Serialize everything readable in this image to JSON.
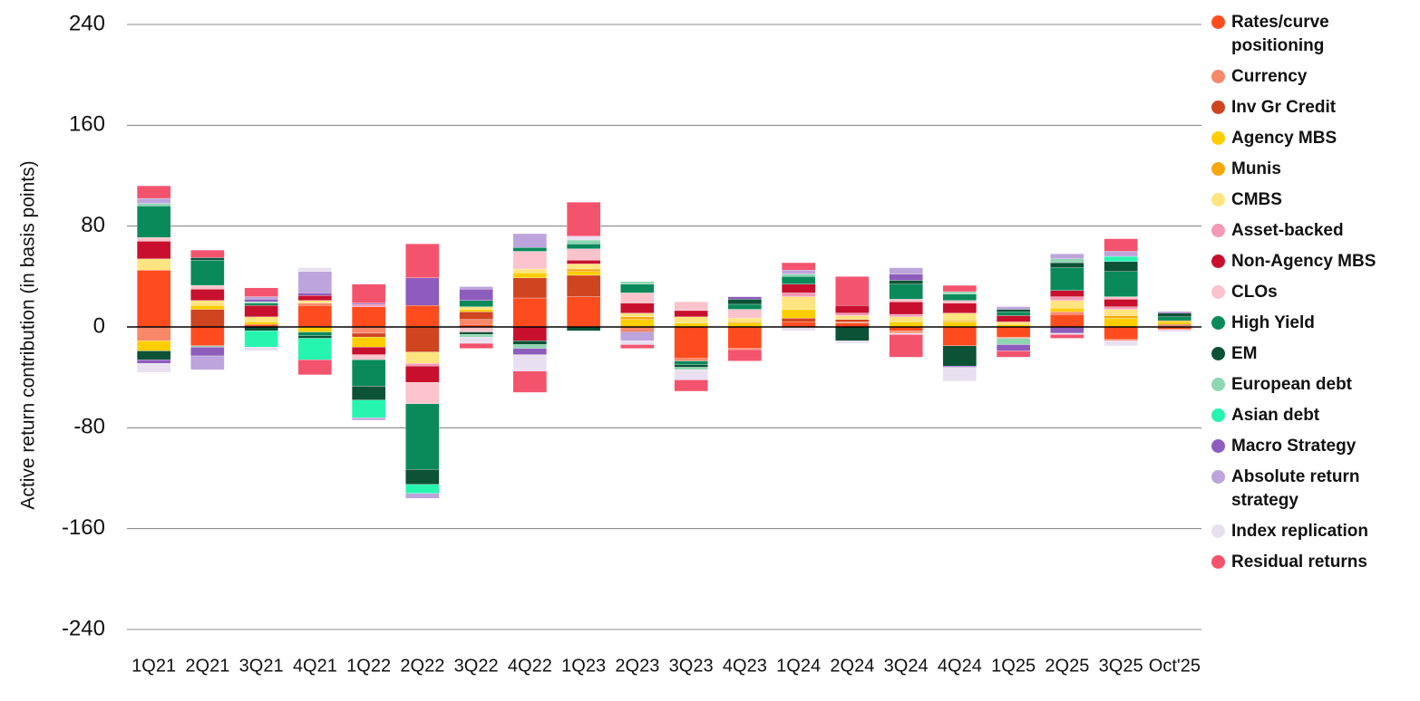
{
  "chart_data": {
    "type": "stacked_bar",
    "y_label": "Active return contribution (in basis points)",
    "categories": [
      "1Q21",
      "2Q21",
      "3Q21",
      "4Q21",
      "1Q22",
      "2Q22",
      "3Q22",
      "4Q22",
      "1Q23",
      "2Q23",
      "3Q23",
      "4Q23",
      "1Q24",
      "2Q24",
      "3Q24",
      "4Q24",
      "1Q25",
      "2Q25",
      "3Q25",
      "Oct'25"
    ],
    "ylim": [
      -240,
      240
    ],
    "yticks": [
      -240,
      -160,
      -80,
      0,
      80,
      160,
      240
    ],
    "grid": true,
    "legend": "right",
    "series": [
      {
        "name": "Rates/curve positioning",
        "color": "#ff4c1f",
        "values": [
          45,
          -15,
          2,
          17,
          16,
          17,
          2,
          23,
          24,
          0,
          -25,
          -17,
          4,
          3,
          -3,
          -15,
          -8,
          10,
          -10,
          -2
        ]
      },
      {
        "name": "Currency",
        "color": "#f7896a",
        "values": [
          -11,
          0,
          0,
          2,
          -5,
          0,
          4,
          0,
          0,
          -3,
          -2,
          -1,
          0,
          1,
          -2,
          0,
          -1,
          2,
          -1,
          1
        ]
      },
      {
        "name": "Inv Gr Credit",
        "color": "#cf4520",
        "values": [
          0,
          14,
          0,
          0,
          -3,
          -20,
          6,
          16,
          17,
          -1,
          0,
          0,
          3,
          2,
          0,
          0,
          0,
          0,
          0,
          1
        ]
      },
      {
        "name": "Agency MBS",
        "color": "#ffce00",
        "values": [
          -8,
          3,
          2,
          -4,
          -8,
          0,
          2,
          4,
          3,
          6,
          3,
          3,
          7,
          0,
          4,
          4,
          2,
          3,
          7,
          2
        ]
      },
      {
        "name": "Munis",
        "color": "#f6a70b",
        "values": [
          0,
          0,
          0,
          0,
          0,
          0,
          0,
          0,
          2,
          2,
          0,
          1,
          0,
          0,
          0,
          1,
          0,
          0,
          2,
          1
        ]
      },
      {
        "name": "CMBS",
        "color": "#ffe47f",
        "values": [
          9,
          4,
          4,
          2,
          0,
          -9,
          2,
          3,
          4,
          3,
          5,
          3,
          10,
          3,
          4,
          6,
          2,
          6,
          5,
          0
        ]
      },
      {
        "name": "Asset-backed",
        "color": "#f599b6",
        "values": [
          0,
          0,
          0,
          0,
          2,
          -2,
          0,
          0,
          0,
          0,
          0,
          0,
          3,
          2,
          2,
          0,
          0,
          3,
          2,
          0
        ]
      },
      {
        "name": "Non-Agency MBS",
        "color": "#c8102e",
        "values": [
          14,
          9,
          9,
          4,
          -6,
          -13,
          0,
          -11,
          3,
          8,
          5,
          0,
          7,
          6,
          10,
          8,
          5,
          5,
          6,
          0
        ]
      },
      {
        "name": "CLOs",
        "color": "#fbc3cb",
        "values": [
          3,
          3,
          0,
          0,
          -4,
          -17,
          -4,
          14,
          9,
          8,
          7,
          7,
          0,
          0,
          2,
          2,
          0,
          0,
          2,
          0
        ]
      },
      {
        "name": "High Yield",
        "color": "#0a8a5b",
        "values": [
          25,
          20,
          2,
          -3,
          -21,
          -52,
          5,
          3,
          4,
          7,
          -3,
          4,
          6,
          0,
          12,
          5,
          3,
          18,
          20,
          3
        ]
      },
      {
        "name": "EM",
        "color": "#0b5236",
        "values": [
          -7,
          2,
          -3,
          -2,
          -11,
          -12,
          -2,
          -3,
          -3,
          0,
          -2,
          4,
          0,
          -11,
          3,
          -16,
          2,
          4,
          8,
          3
        ]
      },
      {
        "name": "European debt",
        "color": "#8fd6b3",
        "values": [
          2,
          -1,
          1,
          0,
          0,
          0,
          -2,
          -3,
          3,
          2,
          -2,
          0,
          2,
          0,
          0,
          2,
          -5,
          3,
          0,
          0
        ]
      },
      {
        "name": "Asian debt",
        "color": "#26f5b0",
        "values": [
          0,
          0,
          -13,
          -17,
          -14,
          -7,
          0,
          0,
          0,
          0,
          0,
          0,
          0,
          0,
          0,
          0,
          0,
          0,
          4,
          0
        ]
      },
      {
        "name": "Macro Strategy",
        "color": "#8e5cbd",
        "values": [
          -3,
          -7,
          2,
          2,
          1,
          22,
          9,
          -5,
          0,
          0,
          0,
          2,
          0,
          0,
          5,
          -1,
          -5,
          -5,
          0,
          1
        ]
      },
      {
        "name": "Absolute return strategy",
        "color": "#bda4dc",
        "values": [
          4,
          -11,
          2,
          17,
          -2,
          -4,
          2,
          11,
          0,
          -7,
          0,
          0,
          3,
          0,
          5,
          0,
          2,
          4,
          4,
          0
        ]
      },
      {
        "name": "Index replication",
        "color": "#e8e0f0",
        "values": [
          -7,
          0,
          -3,
          3,
          0,
          0,
          -5,
          -13,
          3,
          -3,
          -8,
          0,
          -3,
          -2,
          -1,
          -11,
          1,
          -1,
          -4,
          -2
        ]
      },
      {
        "name": "Residual returns",
        "color": "#f4536e",
        "values": [
          10,
          6,
          7,
          -12,
          15,
          27,
          -4,
          -17,
          27,
          -3,
          -9,
          -9,
          6,
          23,
          -18,
          5,
          -5,
          -3,
          10,
          0
        ]
      }
    ]
  }
}
